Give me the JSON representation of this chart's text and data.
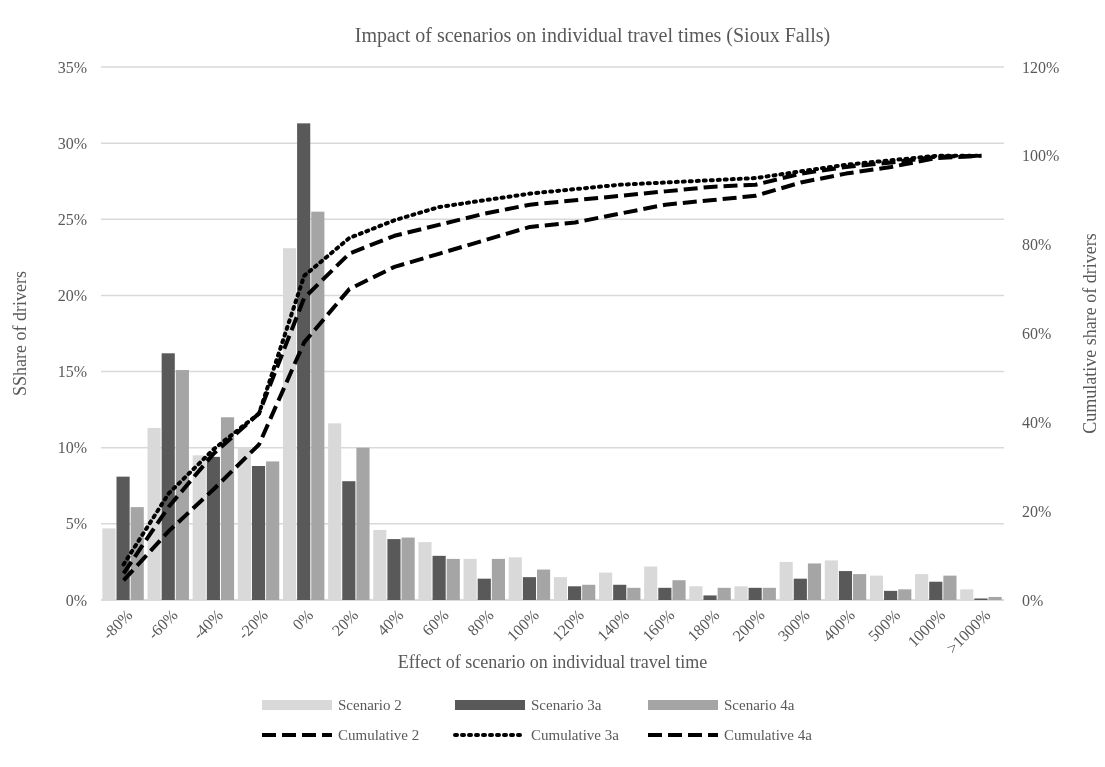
{
  "chart_data": {
    "type": "bar",
    "title": "Impact of scenarios on individual travel times (Sioux Falls)",
    "xlabel": "Effect of scenario on individual travel time",
    "ylabel": "SShare of drivers",
    "y2label": "Cumulative share of drivers",
    "categories": [
      "-80%",
      "-60%",
      "-40%",
      "-20%",
      "0%",
      "20%",
      "40%",
      "60%",
      "80%",
      "100%",
      "120%",
      "140%",
      "160%",
      "180%",
      "200%",
      "300%",
      "400%",
      "500%",
      "1000%",
      ">1000%"
    ],
    "series": [
      {
        "name": "Scenario 2",
        "color": "#d9d9d9",
        "values": [
          4.7,
          11.3,
          9.5,
          10.0,
          23.1,
          11.6,
          4.6,
          3.8,
          2.7,
          2.8,
          1.5,
          1.8,
          2.2,
          0.9,
          0.9,
          2.5,
          2.6,
          1.6,
          1.7,
          0.7
        ]
      },
      {
        "name": "Scenario 3a",
        "color": "#595959",
        "values": [
          8.1,
          16.2,
          9.4,
          8.8,
          31.3,
          7.8,
          4.0,
          2.9,
          1.4,
          1.5,
          0.9,
          1.0,
          0.8,
          0.3,
          0.8,
          1.4,
          1.9,
          0.6,
          1.2,
          0.1
        ]
      },
      {
        "name": "Scenario 4a",
        "color": "#a5a5a5",
        "values": [
          6.1,
          15.1,
          12.0,
          9.1,
          25.5,
          10.0,
          4.1,
          2.7,
          2.7,
          2.0,
          1.0,
          0.8,
          1.3,
          0.8,
          0.8,
          2.4,
          1.7,
          0.7,
          1.6,
          0.2
        ]
      },
      {
        "name": "Cumulative 2",
        "type": "line",
        "axis": "y2",
        "color": "#000000",
        "line_style": "dashed",
        "values": [
          4.4,
          15.5,
          25,
          35,
          58,
          70,
          75,
          78,
          81,
          84,
          85,
          87,
          89,
          90,
          91,
          94,
          96,
          97.5,
          99.5,
          100
        ]
      },
      {
        "name": "Cumulative 3a",
        "type": "line",
        "axis": "y2",
        "color": "#000000",
        "line_style": "dotted",
        "values": [
          8,
          24,
          34,
          42,
          73,
          81.5,
          85.5,
          88.5,
          90,
          91.5,
          92.5,
          93.5,
          94,
          94.5,
          95,
          96.5,
          98,
          99,
          100,
          100
        ]
      },
      {
        "name": "Cumulative 4a",
        "type": "line",
        "axis": "y2",
        "color": "#000000",
        "line_style": "dashed",
        "values": [
          6,
          21,
          33,
          42,
          68,
          78,
          82,
          84.5,
          87,
          89,
          90,
          91,
          92,
          93,
          93.5,
          96,
          97.5,
          98.5,
          99.8,
          100
        ]
      }
    ],
    "ylim": [
      0,
      35
    ],
    "yticks": [
      {
        "value": 0,
        "label": "0%"
      },
      {
        "value": 5,
        "label": "5%"
      },
      {
        "value": 10,
        "label": "10%"
      },
      {
        "value": 15,
        "label": "15%"
      },
      {
        "value": 20,
        "label": "20%"
      },
      {
        "value": 25,
        "label": "25%"
      },
      {
        "value": 30,
        "label": "30%"
      },
      {
        "value": 35,
        "label": "35%"
      }
    ],
    "y2lim": [
      0,
      120
    ],
    "y2ticks": [
      {
        "value": 0,
        "label": "0%"
      },
      {
        "value": 20,
        "label": "20%"
      },
      {
        "value": 40,
        "label": "40%"
      },
      {
        "value": 60,
        "label": "60%"
      },
      {
        "value": 80,
        "label": "80%"
      },
      {
        "value": 100,
        "label": "100%"
      },
      {
        "value": 120,
        "label": "120%"
      }
    ],
    "grid": "y",
    "legend": "bottom"
  }
}
